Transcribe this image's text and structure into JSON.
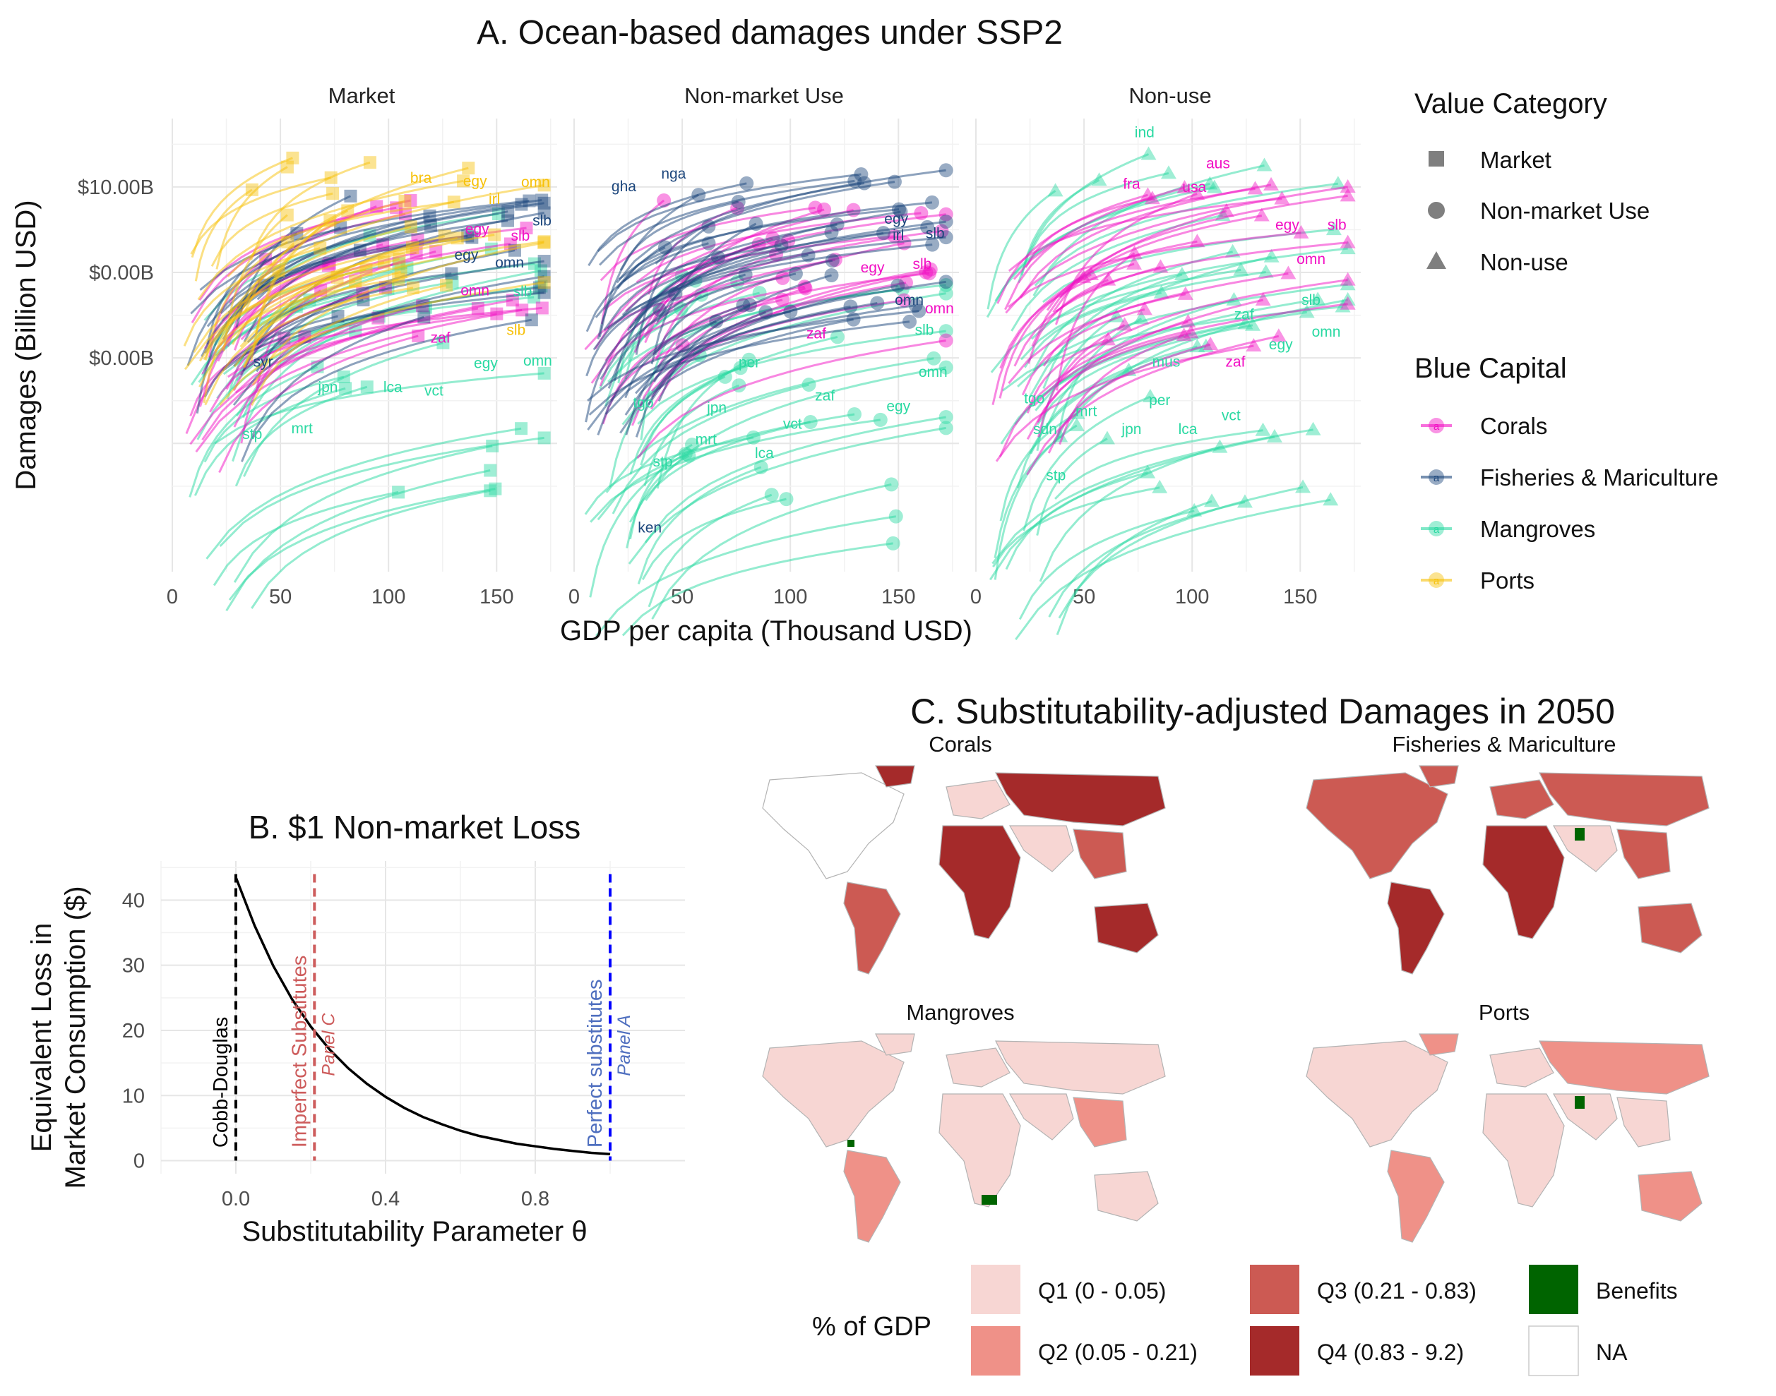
{
  "chart_data": [
    {
      "panel": "A",
      "type": "line",
      "title": "A. Ocean-based damages under SSP2",
      "xlabel": "GDP per capita (Thousand USD)",
      "ylabel": "Damages (Billion USD)",
      "xlim": [
        0,
        178
      ],
      "x_ticks": [
        "0",
        "50",
        "100",
        "150"
      ],
      "y_tick_labels": [
        "$10.00B",
        "$0.00B",
        "$0.00B"
      ],
      "y_scale": "log",
      "grid": true,
      "facets": [
        "Market",
        "Non-market Use",
        "Non-use"
      ],
      "legend": {
        "placement": "right",
        "shape_title": "Value Category",
        "shapes": [
          {
            "label": "Market",
            "shape": "square"
          },
          {
            "label": "Non-market Use",
            "shape": "circle"
          },
          {
            "label": "Non-use",
            "shape": "triangle"
          }
        ],
        "color_title": "Blue Capital",
        "colors": [
          {
            "label": "Corals",
            "color": "#f20fc4"
          },
          {
            "label": "Fisheries & Mariculture",
            "color": "#1c467c"
          },
          {
            "label": "Mangroves",
            "color": "#2ad9a2"
          },
          {
            "label": "Ports",
            "color": "#f7c10a"
          }
        ],
        "key_glyph": "a"
      },
      "country_labels": [
        {
          "facet": 0,
          "text": "bra",
          "color": "#f7c10a",
          "x": 115,
          "y": 1.05
        },
        {
          "facet": 0,
          "text": "egy",
          "color": "#f7c10a",
          "x": 140,
          "y": 1.01
        },
        {
          "facet": 0,
          "text": "omn",
          "color": "#f7c10a",
          "x": 168,
          "y": 1.0
        },
        {
          "facet": 0,
          "text": "irl",
          "color": "#f7c10a",
          "x": 149,
          "y": 0.8
        },
        {
          "facet": 0,
          "text": "egy",
          "color": "#f20fc4",
          "x": 141,
          "y": 0.45
        },
        {
          "facet": 0,
          "text": "slb",
          "color": "#1c467c",
          "x": 171,
          "y": 0.55
        },
        {
          "facet": 0,
          "text": "slb",
          "color": "#f20fc4",
          "x": 161,
          "y": 0.37
        },
        {
          "facet": 0,
          "text": "egy",
          "color": "#1c467c",
          "x": 136,
          "y": 0.15
        },
        {
          "facet": 0,
          "text": "omn",
          "color": "#1c467c",
          "x": 156,
          "y": 0.06
        },
        {
          "facet": 0,
          "text": "omn",
          "color": "#f20fc4",
          "x": 140,
          "y": -0.27
        },
        {
          "facet": 0,
          "text": "slb",
          "color": "#2ad9a2",
          "x": 162,
          "y": -0.28
        },
        {
          "facet": 0,
          "text": "zaf",
          "color": "#f20fc4",
          "x": 124,
          "y": -0.82
        },
        {
          "facet": 0,
          "text": "slb",
          "color": "#f7c10a",
          "x": 159,
          "y": -0.73
        },
        {
          "facet": 0,
          "text": "egy",
          "color": "#2ad9a2",
          "x": 145,
          "y": -1.12
        },
        {
          "facet": 0,
          "text": "omn",
          "color": "#2ad9a2",
          "x": 169,
          "y": -1.09
        },
        {
          "facet": 0,
          "text": "syr",
          "color": "#1c467c",
          "x": 42,
          "y": -1.1
        },
        {
          "facet": 0,
          "text": "jpn",
          "color": "#2ad9a2",
          "x": 72,
          "y": -1.4
        },
        {
          "facet": 0,
          "text": "lca",
          "color": "#2ad9a2",
          "x": 102,
          "y": -1.4
        },
        {
          "facet": 0,
          "text": "vct",
          "color": "#2ad9a2",
          "x": 121,
          "y": -1.44
        },
        {
          "facet": 0,
          "text": "stp",
          "color": "#2ad9a2",
          "x": 37,
          "y": -1.95
        },
        {
          "facet": 0,
          "text": "mrt",
          "color": "#2ad9a2",
          "x": 60,
          "y": -1.88
        },
        {
          "facet": 1,
          "text": "nga",
          "color": "#1c467c",
          "x": 46,
          "y": 1.1
        },
        {
          "facet": 1,
          "text": "gha",
          "color": "#1c467c",
          "x": 23,
          "y": 0.95
        },
        {
          "facet": 1,
          "text": "egy",
          "color": "#1c467c",
          "x": 149,
          "y": 0.57
        },
        {
          "facet": 1,
          "text": "irl",
          "color": "#1c467c",
          "x": 150,
          "y": 0.38
        },
        {
          "facet": 1,
          "text": "slb",
          "color": "#1c467c",
          "x": 167,
          "y": 0.4
        },
        {
          "facet": 1,
          "text": "egy",
          "color": "#f20fc4",
          "x": 138,
          "y": -0.0
        },
        {
          "facet": 1,
          "text": "slb",
          "color": "#f20fc4",
          "x": 161,
          "y": 0.04
        },
        {
          "facet": 1,
          "text": "omn",
          "color": "#1c467c",
          "x": 155,
          "y": -0.38
        },
        {
          "facet": 1,
          "text": "omn",
          "color": "#f20fc4",
          "x": 169,
          "y": -0.48
        },
        {
          "facet": 1,
          "text": "zaf",
          "color": "#f20fc4",
          "x": 112,
          "y": -0.77
        },
        {
          "facet": 1,
          "text": "slb",
          "color": "#2ad9a2",
          "x": 162,
          "y": -0.73
        },
        {
          "facet": 1,
          "text": "per",
          "color": "#2ad9a2",
          "x": 81,
          "y": -1.11
        },
        {
          "facet": 1,
          "text": "omn",
          "color": "#2ad9a2",
          "x": 166,
          "y": -1.22
        },
        {
          "facet": 1,
          "text": "zaf",
          "color": "#2ad9a2",
          "x": 116,
          "y": -1.5
        },
        {
          "facet": 1,
          "text": "egy",
          "color": "#2ad9a2",
          "x": 150,
          "y": -1.62
        },
        {
          "facet": 1,
          "text": "tgo",
          "color": "#2ad9a2",
          "x": 32,
          "y": -1.58
        },
        {
          "facet": 1,
          "text": "jpn",
          "color": "#2ad9a2",
          "x": 66,
          "y": -1.64
        },
        {
          "facet": 1,
          "text": "vct",
          "color": "#2ad9a2",
          "x": 101,
          "y": -1.83
        },
        {
          "facet": 1,
          "text": "mrt",
          "color": "#2ad9a2",
          "x": 61,
          "y": -2.01
        },
        {
          "facet": 1,
          "text": "lca",
          "color": "#2ad9a2",
          "x": 88,
          "y": -2.17
        },
        {
          "facet": 1,
          "text": "stp",
          "color": "#2ad9a2",
          "x": 41,
          "y": -2.27
        },
        {
          "facet": 1,
          "text": "ken",
          "color": "#1c467c",
          "x": 35,
          "y": -3.04
        },
        {
          "facet": 2,
          "text": "ind",
          "color": "#2ad9a2",
          "x": 78,
          "y": 1.58
        },
        {
          "facet": 2,
          "text": "aus",
          "color": "#f20fc4",
          "x": 112,
          "y": 1.22
        },
        {
          "facet": 2,
          "text": "fra",
          "color": "#f20fc4",
          "x": 72,
          "y": 0.98
        },
        {
          "facet": 2,
          "text": "usa",
          "color": "#f20fc4",
          "x": 101,
          "y": 0.94
        },
        {
          "facet": 2,
          "text": "egy",
          "color": "#f20fc4",
          "x": 144,
          "y": 0.5
        },
        {
          "facet": 2,
          "text": "slb",
          "color": "#f20fc4",
          "x": 167,
          "y": 0.5
        },
        {
          "facet": 2,
          "text": "omn",
          "color": "#f20fc4",
          "x": 155,
          "y": 0.1
        },
        {
          "facet": 2,
          "text": "slb",
          "color": "#2ad9a2",
          "x": 155,
          "y": -0.38
        },
        {
          "facet": 2,
          "text": "zaf",
          "color": "#2ad9a2",
          "x": 124,
          "y": -0.55
        },
        {
          "facet": 2,
          "text": "omn",
          "color": "#2ad9a2",
          "x": 162,
          "y": -0.75
        },
        {
          "facet": 2,
          "text": "egy",
          "color": "#2ad9a2",
          "x": 141,
          "y": -0.9
        },
        {
          "facet": 2,
          "text": "mus",
          "color": "#2ad9a2",
          "x": 88,
          "y": -1.1
        },
        {
          "facet": 2,
          "text": "zaf",
          "color": "#f20fc4",
          "x": 120,
          "y": -1.1
        },
        {
          "facet": 2,
          "text": "tgo",
          "color": "#2ad9a2",
          "x": 27,
          "y": -1.53
        },
        {
          "facet": 2,
          "text": "per",
          "color": "#2ad9a2",
          "x": 85,
          "y": -1.55
        },
        {
          "facet": 2,
          "text": "mrt",
          "color": "#2ad9a2",
          "x": 51,
          "y": -1.68
        },
        {
          "facet": 2,
          "text": "vct",
          "color": "#2ad9a2",
          "x": 118,
          "y": -1.73
        },
        {
          "facet": 2,
          "text": "sdn",
          "color": "#2ad9a2",
          "x": 32,
          "y": -1.89
        },
        {
          "facet": 2,
          "text": "jpn",
          "color": "#2ad9a2",
          "x": 72,
          "y": -1.89
        },
        {
          "facet": 2,
          "text": "lca",
          "color": "#2ad9a2",
          "x": 98,
          "y": -1.89
        },
        {
          "facet": 2,
          "text": "stp",
          "color": "#2ad9a2",
          "x": 37,
          "y": -2.43
        }
      ]
    },
    {
      "panel": "B",
      "type": "line",
      "title": "B. $1 Non-market Loss",
      "xlabel": "Substitutability Parameter θ",
      "ylabel_lines": [
        "Equivalent Loss in",
        "Market Consumption ($)"
      ],
      "xlim": [
        -0.2,
        1.2
      ],
      "ylim": [
        -2,
        46
      ],
      "x_ticks": [
        "0.0",
        "0.4",
        "0.8"
      ],
      "y_ticks": [
        "0",
        "10",
        "20",
        "30",
        "40"
      ],
      "grid": true,
      "curve": {
        "x": [
          0.0,
          0.05,
          0.1,
          0.15,
          0.2,
          0.25,
          0.3,
          0.35,
          0.4,
          0.45,
          0.5,
          0.55,
          0.6,
          0.65,
          0.7,
          0.75,
          0.8,
          0.85,
          0.9,
          0.95,
          1.0
        ],
        "y": [
          43.5,
          36.1,
          29.9,
          24.8,
          20.6,
          17.1,
          14.2,
          11.8,
          9.8,
          8.1,
          6.7,
          5.6,
          4.6,
          3.8,
          3.2,
          2.6,
          2.2,
          1.8,
          1.5,
          1.2,
          1.0
        ]
      },
      "reference_lines": [
        {
          "x": 0.0,
          "color": "#000000",
          "label": "Cobb-Douglas",
          "sublabel": ""
        },
        {
          "x": 0.21,
          "color": "#cd5c5c",
          "label": "Imperfect Substitutes",
          "sublabel": "Panel C"
        },
        {
          "x": 1.0,
          "color": "#0000ff",
          "label": "Perfect substitutes",
          "sublabel": "Panel A",
          "label_color": "#4f6fbf"
        }
      ]
    },
    {
      "panel": "C",
      "type": "heatmap",
      "title": "C. Substitutability-adjusted Damages in 2050",
      "maps": [
        "Corals",
        "Fisheries & Mariculture",
        "Mangroves",
        "Ports"
      ],
      "legend": {
        "placement": "bottom",
        "title": "% of GDP",
        "items": [
          {
            "label": "Q1 (0 - 0.05)",
            "color": "#f7d6d3"
          },
          {
            "label": "Q2 (0.05 - 0.21)",
            "color": "#ef9188"
          },
          {
            "label": "Q3 (0.21 - 0.83)",
            "color": "#cc5a53"
          },
          {
            "label": "Q4 (0.83 - 9.2)",
            "color": "#a52a2a"
          },
          {
            "label": "Benefits",
            "color": "#006400"
          },
          {
            "label": "NA",
            "color": "#ffffff"
          }
        ]
      }
    }
  ]
}
